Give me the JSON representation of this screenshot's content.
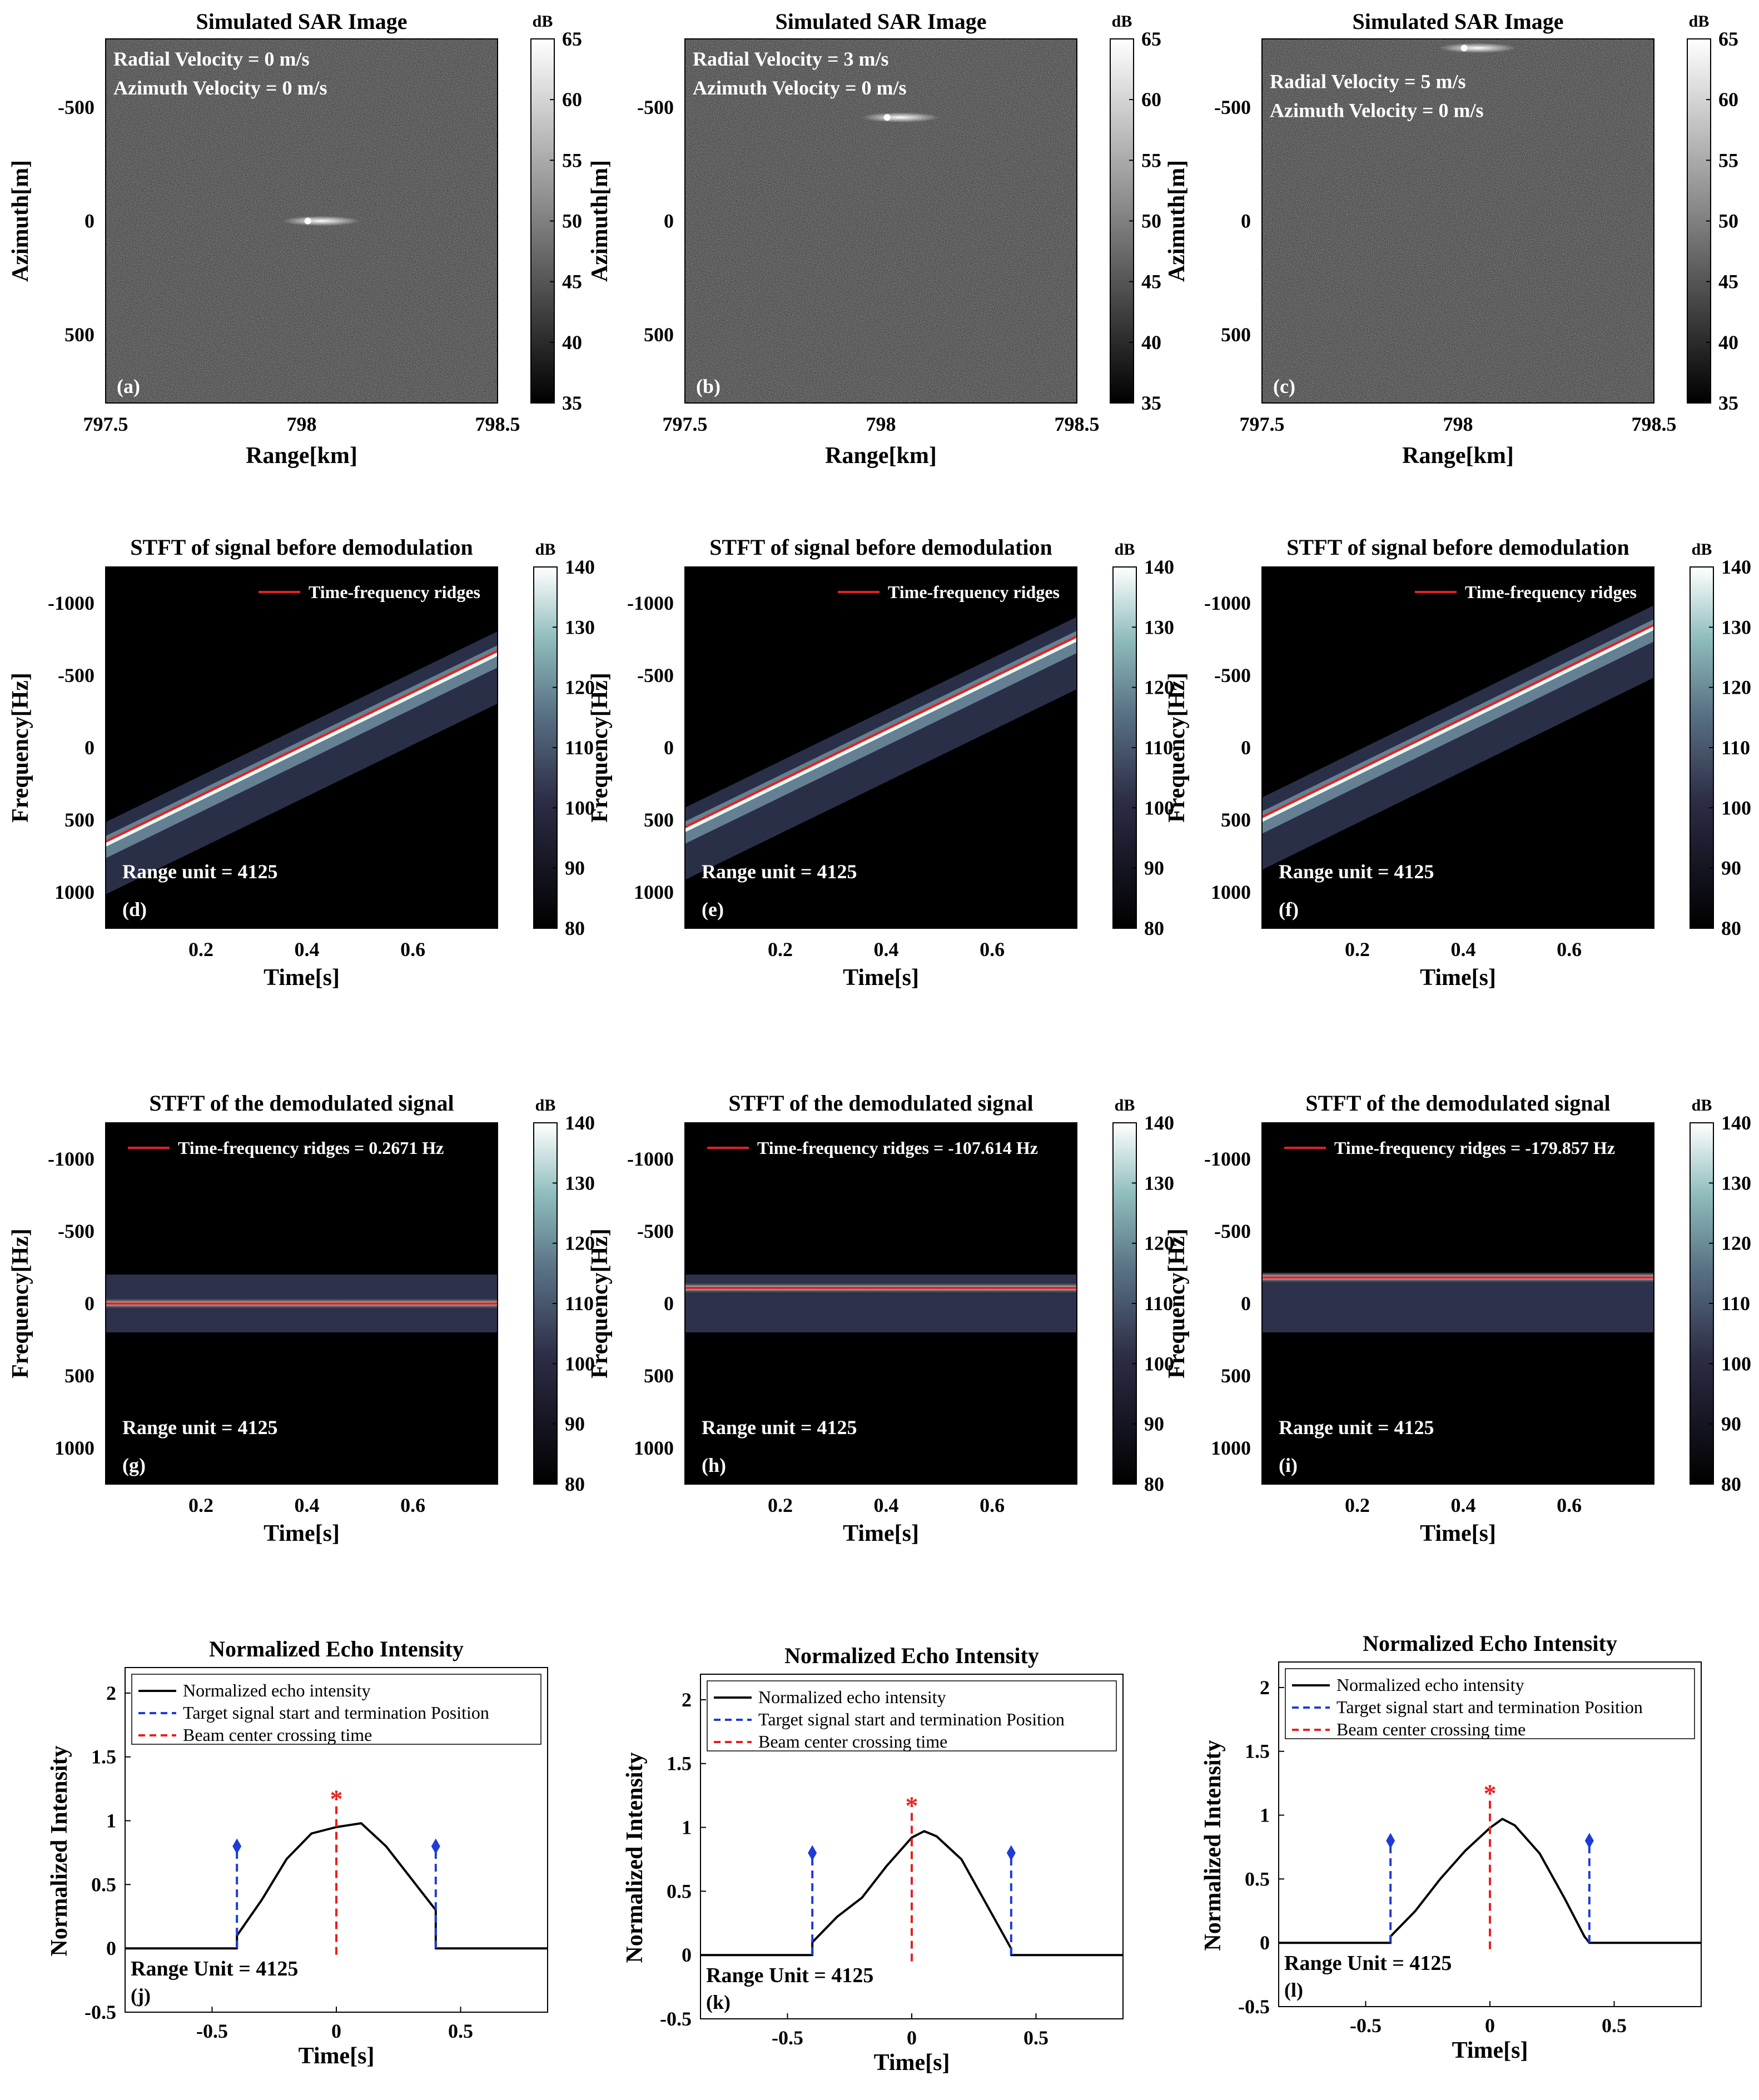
{
  "chart_data": [
    {
      "id": "a",
      "type": "heatmap",
      "title": "Simulated SAR Image",
      "xlabel": "Range[km]",
      "ylabel": "Azimuth[m]",
      "xlim": [
        797.5,
        798.5
      ],
      "ylim": [
        -800,
        800
      ],
      "xticks": [
        "797.5",
        "798",
        "798.5"
      ],
      "yticks": [
        "-500",
        "0",
        "500"
      ],
      "yticks_values": [
        -500,
        0,
        500
      ],
      "colorbar": {
        "label": "dB",
        "min": 35,
        "max": 65,
        "ticks": [
          "65",
          "60",
          "55",
          "50",
          "45",
          "40",
          "35"
        ]
      },
      "annotations": [
        "Radial Velocity = 0 m/s",
        "Azimuth Velocity = 0 m/s"
      ],
      "panel_label": "(a)",
      "target": {
        "range_km": 798.05,
        "azimuth_m": 0
      }
    },
    {
      "id": "b",
      "type": "heatmap",
      "title": "Simulated SAR Image",
      "xlabel": "Range[km]",
      "ylabel": "Azimuth[m]",
      "xlim": [
        797.5,
        798.5
      ],
      "ylim": [
        -800,
        800
      ],
      "xticks": [
        "797.5",
        "798",
        "798.5"
      ],
      "yticks": [
        "-500",
        "0",
        "500"
      ],
      "yticks_values": [
        -500,
        0,
        500
      ],
      "colorbar": {
        "label": "dB",
        "min": 35,
        "max": 65,
        "ticks": [
          "65",
          "60",
          "55",
          "50",
          "45",
          "40",
          "35"
        ]
      },
      "annotations": [
        "Radial Velocity = 3 m/s",
        "Azimuth Velocity = 0 m/s"
      ],
      "panel_label": "(b)",
      "target": {
        "range_km": 798.05,
        "azimuth_m": -455
      }
    },
    {
      "id": "c",
      "type": "heatmap",
      "title": "Simulated SAR Image",
      "xlabel": "Range[km]",
      "ylabel": "Azimuth[m]",
      "xlim": [
        797.5,
        798.5
      ],
      "ylim": [
        -800,
        800
      ],
      "xticks": [
        "797.5",
        "798",
        "798.5"
      ],
      "yticks": [
        "-500",
        "0",
        "500"
      ],
      "yticks_values": [
        -500,
        0,
        500
      ],
      "colorbar": {
        "label": "dB",
        "min": 35,
        "max": 65,
        "ticks": [
          "65",
          "60",
          "55",
          "50",
          "45",
          "40",
          "35"
        ]
      },
      "annotations": [
        "Radial Velocity = 5 m/s",
        "Azimuth Velocity = 0 m/s"
      ],
      "panel_label": "(c)",
      "target": {
        "range_km": 798.05,
        "azimuth_m": -760
      }
    },
    {
      "id": "d",
      "type": "heatmap",
      "title": "STFT of signal before demodulation",
      "xlabel": "Time[s]",
      "ylabel": "Frequency[Hz]",
      "xlim": [
        0.02,
        0.76
      ],
      "ylim": [
        -1250,
        1250
      ],
      "xticks": [
        "0.2",
        "0.4",
        "0.6"
      ],
      "xticks_values": [
        0.2,
        0.4,
        0.6
      ],
      "yticks": [
        "-1000",
        "-500",
        "0",
        "500",
        "1000"
      ],
      "yticks_values": [
        -1000,
        -500,
        0,
        500,
        1000
      ],
      "colorbar": {
        "label": "dB",
        "min": 80,
        "max": 140,
        "ticks": [
          "140",
          "130",
          "120",
          "110",
          "100",
          "90",
          "80"
        ]
      },
      "legend": "Time-frequency ridges",
      "ridge": {
        "t": [
          0.02,
          0.76
        ],
        "f": [
          650,
          -670
        ]
      },
      "range_unit_text": "Range unit = 4125",
      "panel_label": "(d)"
    },
    {
      "id": "e",
      "type": "heatmap",
      "title": "STFT of signal before demodulation",
      "xlabel": "Time[s]",
      "ylabel": "Frequency[Hz]",
      "xlim": [
        0.02,
        0.76
      ],
      "ylim": [
        -1250,
        1250
      ],
      "xticks": [
        "0.2",
        "0.4",
        "0.6"
      ],
      "xticks_values": [
        0.2,
        0.4,
        0.6
      ],
      "yticks": [
        "-1000",
        "-500",
        "0",
        "500",
        "1000"
      ],
      "yticks_values": [
        -1000,
        -500,
        0,
        500,
        1000
      ],
      "colorbar": {
        "label": "dB",
        "min": 80,
        "max": 140,
        "ticks": [
          "140",
          "130",
          "120",
          "110",
          "100",
          "90",
          "80"
        ]
      },
      "legend": "Time-frequency ridges",
      "ridge": {
        "t": [
          0.02,
          0.76
        ],
        "f": [
          550,
          -770
        ]
      },
      "range_unit_text": "Range unit = 4125",
      "panel_label": "(e)"
    },
    {
      "id": "f",
      "type": "heatmap",
      "title": "STFT of signal before demodulation",
      "xlabel": "Time[s]",
      "ylabel": "Frequency[Hz]",
      "xlim": [
        0.02,
        0.76
      ],
      "ylim": [
        -1250,
        1250
      ],
      "xticks": [
        "0.2",
        "0.4",
        "0.6"
      ],
      "xticks_values": [
        0.2,
        0.4,
        0.6
      ],
      "yticks": [
        "-1000",
        "-500",
        "0",
        "500",
        "1000"
      ],
      "yticks_values": [
        -1000,
        -500,
        0,
        500,
        1000
      ],
      "colorbar": {
        "label": "dB",
        "min": 80,
        "max": 140,
        "ticks": [
          "140",
          "130",
          "120",
          "110",
          "100",
          "90",
          "80"
        ]
      },
      "legend": "Time-frequency ridges",
      "ridge": {
        "t": [
          0.02,
          0.76
        ],
        "f": [
          480,
          -850
        ]
      },
      "range_unit_text": "Range unit = 4125",
      "panel_label": "(f)"
    },
    {
      "id": "g",
      "type": "heatmap",
      "title": "STFT of the demodulated signal",
      "xlabel": "Time[s]",
      "ylabel": "Frequency[Hz]",
      "xlim": [
        0.02,
        0.76
      ],
      "ylim": [
        -1250,
        1250
      ],
      "xticks": [
        "0.2",
        "0.4",
        "0.6"
      ],
      "xticks_values": [
        0.2,
        0.4,
        0.6
      ],
      "yticks": [
        "-1000",
        "-500",
        "0",
        "500",
        "1000"
      ],
      "yticks_values": [
        -1000,
        -500,
        0,
        500,
        1000
      ],
      "colorbar": {
        "label": "dB",
        "min": 80,
        "max": 140,
        "ticks": [
          "140",
          "130",
          "120",
          "110",
          "100",
          "90",
          "80"
        ]
      },
      "legend": "Time-frequency ridges = 0.2671 Hz",
      "ridge": {
        "t": [
          0.02,
          0.76
        ],
        "f": [
          0.2671,
          0.2671
        ]
      },
      "range_unit_text": "Range unit = 4125",
      "panel_label": "(g)"
    },
    {
      "id": "h",
      "type": "heatmap",
      "title": "STFT of the demodulated signal",
      "xlabel": "Time[s]",
      "ylabel": "Frequency[Hz]",
      "xlim": [
        0.02,
        0.76
      ],
      "ylim": [
        -1250,
        1250
      ],
      "xticks": [
        "0.2",
        "0.4",
        "0.6"
      ],
      "xticks_values": [
        0.2,
        0.4,
        0.6
      ],
      "yticks": [
        "-1000",
        "-500",
        "0",
        "500",
        "1000"
      ],
      "yticks_values": [
        -1000,
        -500,
        0,
        500,
        1000
      ],
      "colorbar": {
        "label": "dB",
        "min": 80,
        "max": 140,
        "ticks": [
          "140",
          "130",
          "120",
          "110",
          "100",
          "90",
          "80"
        ]
      },
      "legend": "Time-frequency ridges = -107.614 Hz",
      "ridge": {
        "t": [
          0.02,
          0.76
        ],
        "f": [
          -107.614,
          -107.614
        ]
      },
      "range_unit_text": "Range unit = 4125",
      "panel_label": "(h)"
    },
    {
      "id": "i",
      "type": "heatmap",
      "title": "STFT of the demodulated signal",
      "xlabel": "Time[s]",
      "ylabel": "Frequency[Hz]",
      "xlim": [
        0.02,
        0.76
      ],
      "ylim": [
        -1250,
        1250
      ],
      "xticks": [
        "0.2",
        "0.4",
        "0.6"
      ],
      "xticks_values": [
        0.2,
        0.4,
        0.6
      ],
      "yticks": [
        "-1000",
        "-500",
        "0",
        "500",
        "1000"
      ],
      "yticks_values": [
        -1000,
        -500,
        0,
        500,
        1000
      ],
      "colorbar": {
        "label": "dB",
        "min": 80,
        "max": 140,
        "ticks": [
          "140",
          "130",
          "120",
          "110",
          "100",
          "90",
          "80"
        ]
      },
      "legend": "Time-frequency ridges = -179.857 Hz",
      "ridge": {
        "t": [
          0.02,
          0.76
        ],
        "f": [
          -179.857,
          -179.857
        ]
      },
      "range_unit_text": "Range unit = 4125",
      "panel_label": "(i)"
    },
    {
      "id": "j",
      "type": "line",
      "title": "Normalized Echo Intensity",
      "xlabel": "Time[s]",
      "ylabel": "Normalized Intensity",
      "xlim": [
        -0.85,
        0.85
      ],
      "ylim": [
        -0.5,
        2.2
      ],
      "xticks": [
        "-0.5",
        "0",
        "0.5"
      ],
      "xticks_values": [
        -0.5,
        0,
        0.5
      ],
      "yticks": [
        "-0.5",
        "0",
        "0.5",
        "1",
        "1.5",
        "2"
      ],
      "yticks_values": [
        -0.5,
        0,
        0.5,
        1,
        1.5,
        2
      ],
      "legend": [
        "Normalized echo intensity",
        "Target signal start and termination Position",
        "Beam center crossing time"
      ],
      "series": [
        {
          "name": "Normalized echo intensity",
          "x": [
            -0.85,
            -0.4,
            -0.4,
            -0.3,
            -0.2,
            -0.1,
            0.0,
            0.1,
            0.2,
            0.3,
            0.4,
            0.4,
            0.85
          ],
          "y": [
            0,
            0,
            0.1,
            0.38,
            0.7,
            0.9,
            0.95,
            0.98,
            0.8,
            0.55,
            0.3,
            0,
            0
          ]
        }
      ],
      "start_end": [
        -0.4,
        0.4
      ],
      "start_end_marker_y": 0.8,
      "beam_center": 0.0,
      "beam_marker_y": 1.2,
      "range_unit_text": "Range Unit = 4125",
      "panel_label": "(j)"
    },
    {
      "id": "k",
      "type": "line",
      "title": "Normalized Echo Intensity",
      "xlabel": "Time[s]",
      "ylabel": "Normalized Intensity",
      "xlim": [
        -0.85,
        0.85
      ],
      "ylim": [
        -0.5,
        2.2
      ],
      "xticks": [
        "-0.5",
        "0",
        "0.5"
      ],
      "xticks_values": [
        -0.5,
        0,
        0.5
      ],
      "yticks": [
        "-0.5",
        "0",
        "0.5",
        "1",
        "1.5",
        "2"
      ],
      "yticks_values": [
        -0.5,
        0,
        0.5,
        1,
        1.5,
        2
      ],
      "legend": [
        "Normalized echo intensity",
        "Target signal start and termination Position",
        "Beam center crossing time"
      ],
      "series": [
        {
          "name": "Normalized echo intensity",
          "x": [
            -0.85,
            -0.4,
            -0.4,
            -0.3,
            -0.2,
            -0.1,
            0.0,
            0.05,
            0.1,
            0.2,
            0.3,
            0.4,
            0.4,
            0.85
          ],
          "y": [
            0,
            0,
            0.1,
            0.3,
            0.45,
            0.7,
            0.92,
            0.97,
            0.93,
            0.75,
            0.4,
            0.05,
            0,
            0
          ]
        }
      ],
      "start_end": [
        -0.4,
        0.4
      ],
      "start_end_marker_y": 0.8,
      "beam_center": 0.0,
      "beam_marker_y": 1.2,
      "range_unit_text": "Range Unit = 4125",
      "panel_label": "(k)"
    },
    {
      "id": "l",
      "type": "line",
      "title": "Normalized Echo Intensity",
      "xlabel": "Time[s]",
      "ylabel": "Normalized Intensity",
      "xlim": [
        -0.85,
        0.85
      ],
      "ylim": [
        -0.5,
        2.2
      ],
      "xticks": [
        "-0.5",
        "0",
        "0.5"
      ],
      "xticks_values": [
        -0.5,
        0,
        0.5
      ],
      "yticks": [
        "-0.5",
        "0",
        "0.5",
        "1",
        "1.5",
        "2"
      ],
      "yticks_values": [
        -0.5,
        0,
        0.5,
        1,
        1.5,
        2
      ],
      "legend": [
        "Normalized echo intensity",
        "Target signal start and termination Position",
        "Beam center crossing time"
      ],
      "series": [
        {
          "name": "Normalized echo intensity",
          "x": [
            -0.85,
            -0.4,
            -0.4,
            -0.3,
            -0.2,
            -0.1,
            0.0,
            0.05,
            0.1,
            0.2,
            0.3,
            0.38,
            0.4,
            0.85
          ],
          "y": [
            0,
            0,
            0.05,
            0.25,
            0.5,
            0.72,
            0.9,
            0.97,
            0.92,
            0.7,
            0.35,
            0.05,
            0,
            0
          ]
        }
      ],
      "start_end": [
        -0.4,
        0.4
      ],
      "start_end_marker_y": 0.8,
      "beam_center": 0.0,
      "beam_marker_y": 1.2,
      "range_unit_text": "Range Unit = 4125",
      "panel_label": "(l)"
    }
  ]
}
